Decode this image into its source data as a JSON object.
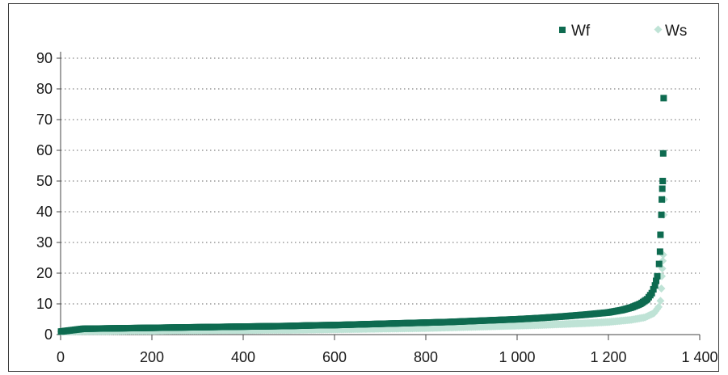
{
  "chart_data": {
    "type": "scatter",
    "title": "",
    "xlabel": "",
    "ylabel": "",
    "xlim": [
      0,
      1400
    ],
    "ylim": [
      0,
      90
    ],
    "x_ticks": [
      0,
      200,
      400,
      600,
      800,
      1000,
      1200,
      1400
    ],
    "x_tick_labels": [
      "0",
      "200",
      "400",
      "600",
      "800",
      "1 000",
      "1 200",
      "1 400"
    ],
    "y_ticks": [
      0,
      10,
      20,
      30,
      40,
      50,
      60,
      70,
      80,
      90
    ],
    "y_tick_labels": [
      "0",
      "10",
      "20",
      "30",
      "40",
      "50",
      "60",
      "70",
      "80",
      "90"
    ],
    "grid": "horizontal dotted",
    "legend_position": "top-right",
    "series": [
      {
        "name": "Wf",
        "color": "#0e6b50",
        "marker": "square",
        "points": [
          [
            1,
            1.0
          ],
          [
            50,
            1.9
          ],
          [
            100,
            2.0
          ],
          [
            150,
            2.1
          ],
          [
            200,
            2.2
          ],
          [
            250,
            2.3
          ],
          [
            300,
            2.4
          ],
          [
            350,
            2.5
          ],
          [
            400,
            2.6
          ],
          [
            450,
            2.7
          ],
          [
            500,
            2.8
          ],
          [
            550,
            3.0
          ],
          [
            600,
            3.1
          ],
          [
            650,
            3.3
          ],
          [
            700,
            3.5
          ],
          [
            750,
            3.7
          ],
          [
            800,
            3.9
          ],
          [
            850,
            4.1
          ],
          [
            900,
            4.4
          ],
          [
            950,
            4.7
          ],
          [
            1000,
            5.0
          ],
          [
            1050,
            5.4
          ],
          [
            1100,
            5.9
          ],
          [
            1150,
            6.5
          ],
          [
            1200,
            7.2
          ],
          [
            1230,
            8.0
          ],
          [
            1250,
            8.8
          ],
          [
            1270,
            10.0
          ],
          [
            1285,
            11.5
          ],
          [
            1295,
            13.5
          ],
          [
            1302,
            16.0
          ],
          [
            1307,
            19.0
          ],
          [
            1311,
            23.0
          ],
          [
            1313,
            27.0
          ],
          [
            1314,
            32.5
          ],
          [
            1316,
            39.0
          ],
          [
            1317,
            44.0
          ],
          [
            1318,
            47.5
          ],
          [
            1319,
            50.0
          ],
          [
            1320,
            59.0
          ],
          [
            1321,
            77.0
          ]
        ]
      },
      {
        "name": "Ws",
        "color": "#bfe3d6",
        "marker": "diamond",
        "points": [
          [
            1,
            1.0
          ],
          [
            50,
            1.1
          ],
          [
            100,
            1.1
          ],
          [
            150,
            1.2
          ],
          [
            200,
            1.2
          ],
          [
            250,
            1.3
          ],
          [
            300,
            1.3
          ],
          [
            350,
            1.4
          ],
          [
            400,
            1.4
          ],
          [
            450,
            1.5
          ],
          [
            500,
            1.5
          ],
          [
            550,
            1.6
          ],
          [
            600,
            1.7
          ],
          [
            650,
            1.8
          ],
          [
            700,
            1.9
          ],
          [
            750,
            2.0
          ],
          [
            800,
            2.1
          ],
          [
            850,
            2.3
          ],
          [
            900,
            2.5
          ],
          [
            950,
            2.7
          ],
          [
            1000,
            2.9
          ],
          [
            1050,
            3.1
          ],
          [
            1100,
            3.4
          ],
          [
            1150,
            3.7
          ],
          [
            1200,
            4.1
          ],
          [
            1250,
            4.8
          ],
          [
            1280,
            5.6
          ],
          [
            1300,
            7.0
          ],
          [
            1310,
            9.0
          ],
          [
            1314,
            11.0
          ],
          [
            1316,
            15.0
          ],
          [
            1317,
            19.0
          ],
          [
            1318,
            21.5
          ],
          [
            1319,
            24.0
          ],
          [
            1320,
            26.0
          ],
          [
            1321,
            39.0
          ],
          [
            1322,
            44.0
          ]
        ]
      }
    ]
  }
}
